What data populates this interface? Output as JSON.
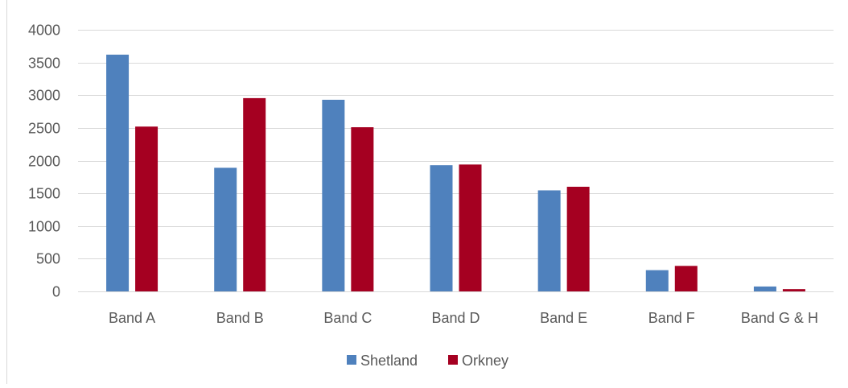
{
  "chart_data": {
    "type": "bar",
    "title": "",
    "xlabel": "",
    "ylabel": "",
    "categories": [
      "Band A",
      "Band B",
      "Band C",
      "Band D",
      "Band E",
      "Band F",
      "Band G & H"
    ],
    "series": [
      {
        "name": "Shetland",
        "color": "#4f81bd",
        "values": [
          3620,
          1890,
          2930,
          1930,
          1545,
          325,
          75
        ]
      },
      {
        "name": "Orkney",
        "color": "#a50021",
        "values": [
          2520,
          2955,
          2510,
          1940,
          1600,
          390,
          35
        ]
      }
    ],
    "ylim": [
      0,
      4000
    ],
    "yticks": [
      "0",
      "500",
      "1000",
      "1500",
      "2000",
      "2500",
      "3000",
      "3500",
      "4000"
    ],
    "grid": true,
    "gridline_color": "#d9d9d9",
    "legend_position": "bottom"
  }
}
